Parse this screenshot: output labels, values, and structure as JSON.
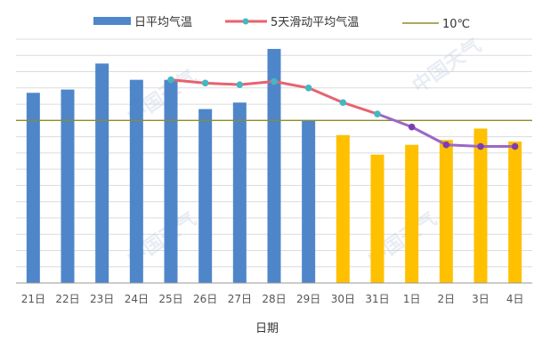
{
  "chart_data": {
    "type": "bar",
    "title": "",
    "xlabel": "日期",
    "ylabel": "",
    "categories": [
      "21日",
      "22日",
      "23日",
      "24日",
      "25日",
      "26日",
      "27日",
      "28日",
      "29日",
      "30日",
      "31日",
      "1日",
      "2日",
      "3日",
      "4日"
    ],
    "ylim": [
      0,
      15
    ],
    "series": [
      {
        "name": "日平均气温",
        "type": "bar",
        "values": [
          11.7,
          11.9,
          13.5,
          12.5,
          12.5,
          10.7,
          11.1,
          14.4,
          10.0,
          9.1,
          7.9,
          8.5,
          8.8,
          9.5,
          8.7
        ],
        "colors": [
          "#4e86c9",
          "#4e86c9",
          "#4e86c9",
          "#4e86c9",
          "#4e86c9",
          "#4e86c9",
          "#4e86c9",
          "#4e86c9",
          "#4e86c9",
          "#ffc000",
          "#ffc000",
          "#ffc000",
          "#ffc000",
          "#ffc000",
          "#ffc000"
        ]
      },
      {
        "name": "5天滑动平均气温",
        "type": "line",
        "values": [
          null,
          null,
          null,
          null,
          12.5,
          12.3,
          12.2,
          12.4,
          12.0,
          11.1,
          10.4,
          9.6,
          8.5,
          8.4,
          8.4
        ],
        "color_observed": "#e8626e",
        "color_forecast": "#9d66c7",
        "marker_color_observed": "#44b7c2",
        "marker_color_forecast": "#7b3fb0",
        "forecast_start_index": 11
      },
      {
        "name": "10℃",
        "type": "reference_line",
        "value": 10,
        "color": "#8d8d2c"
      }
    ],
    "y_ticks_count": 16,
    "grid": true,
    "legend": "top",
    "watermark_text": "中国天气",
    "colors": {
      "bar_observed": "#4e86c9",
      "bar_forecast": "#ffc000",
      "gridline": "#dcdcdc"
    }
  }
}
